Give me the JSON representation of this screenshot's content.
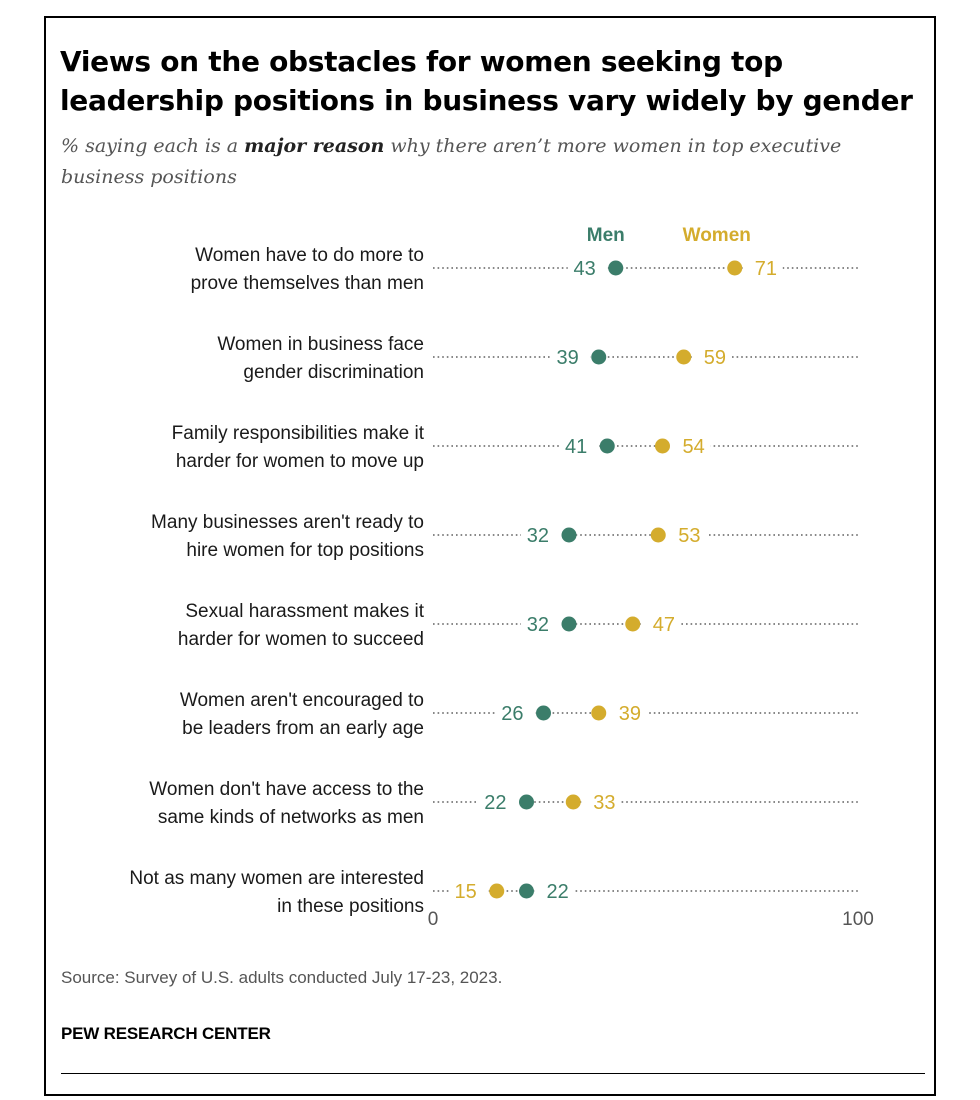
{
  "title": "Views on the obstacles for women seeking top leadership positions in business vary widely by gender",
  "subtitle": {
    "prefix": "% saying each is a ",
    "emphasis": "major reason",
    "suffix": " why there aren’t more women in top executive business positions"
  },
  "source": "Source: Survey of U.S. adults conducted July 17-23, 2023.",
  "brand": "PEW RESEARCH CENTER",
  "colors": {
    "men": "#3b7d6a",
    "women": "#d4ac2d",
    "dots": "#888888"
  },
  "chart_data": {
    "type": "dot-plot",
    "title": "Views on the obstacles for women seeking top leadership positions in business vary widely by gender",
    "xlim": [
      0,
      100
    ],
    "x_ticks": [
      "0",
      "100"
    ],
    "legend": [
      "Men",
      "Women"
    ],
    "legend_position": "top",
    "categories": [
      [
        "Women have to do more to",
        "prove themselves than men"
      ],
      [
        "Women in business face",
        "gender discrimination"
      ],
      [
        "Family responsibilities make it",
        "harder for women to move up"
      ],
      [
        "Many businesses aren't ready to",
        "hire women for top positions"
      ],
      [
        "Sexual harassment makes it",
        "harder for women to succeed"
      ],
      [
        "Women aren't encouraged to",
        "be leaders from an early age"
      ],
      [
        "Women don't have access to the",
        "same kinds of networks as men"
      ],
      [
        "Not as many women are interested",
        "in these positions"
      ]
    ],
    "series": [
      {
        "name": "Men",
        "values": [
          43,
          39,
          41,
          32,
          32,
          26,
          22,
          22
        ]
      },
      {
        "name": "Women",
        "values": [
          71,
          59,
          54,
          53,
          47,
          39,
          33,
          15
        ]
      }
    ]
  }
}
